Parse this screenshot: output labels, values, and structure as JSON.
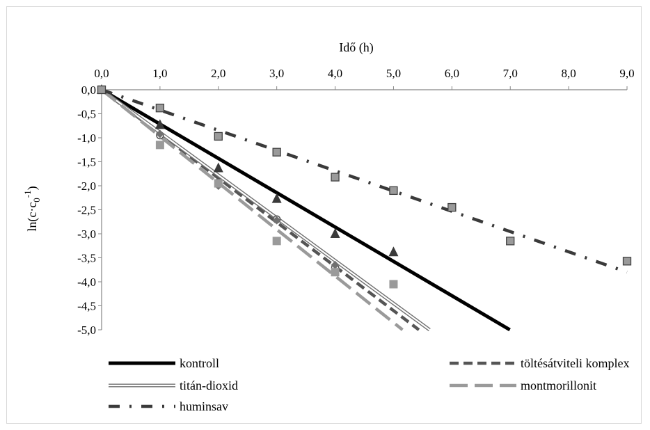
{
  "chart_data": {
    "type": "scatter",
    "title": "",
    "xlabel": "Idő (h)",
    "ylabel_main": "ln(c·c",
    "ylabel_sub": "0",
    "ylabel_sup": "-1",
    "ylabel_close": ")",
    "x_ticks": [
      "0,0",
      "1,0",
      "2,0",
      "3,0",
      "4,0",
      "5,0",
      "6,0",
      "7,0",
      "8,0",
      "9,0"
    ],
    "y_ticks": [
      "0,0",
      "-0,5",
      "-1,0",
      "-1,5",
      "-2,0",
      "-2,5",
      "-3,0",
      "-3,5",
      "-4,0",
      "-4,5",
      "-5,0"
    ],
    "xlim": [
      0,
      9
    ],
    "ylim": [
      -5,
      0
    ],
    "x_axis_position": "top",
    "legend_position": "bottom",
    "series": [
      {
        "name": "kontroll",
        "color": "#000000",
        "line_style": "solid",
        "marker": "triangle",
        "marker_color": "#3a3a3a",
        "points": [
          [
            0,
            0
          ],
          [
            1,
            -0.73
          ],
          [
            2,
            -1.63
          ],
          [
            3,
            -2.27
          ],
          [
            4,
            -3.0
          ],
          [
            5,
            -3.38
          ]
        ],
        "trend_slope": -0.715
      },
      {
        "name": "töltésátviteli komplex",
        "color": "#555555",
        "line_style": "dashed",
        "marker": "circle",
        "marker_color": "#555555",
        "points": [
          [
            0,
            0
          ],
          [
            1,
            -0.95
          ],
          [
            2,
            -1.93
          ],
          [
            3,
            -2.7
          ],
          [
            4,
            -3.7
          ]
        ],
        "trend_slope": -0.92
      },
      {
        "name": "titán-dioxid",
        "color": "#707070",
        "line_style": "double",
        "marker": "diamond",
        "marker_color": "#707070",
        "points": [
          [
            0,
            0
          ],
          [
            1,
            -0.92
          ],
          [
            2,
            -2.0
          ],
          [
            3,
            -2.72
          ],
          [
            4,
            -3.65
          ]
        ],
        "trend_slope": -0.89
      },
      {
        "name": "montmorillonit",
        "color": "#9a9a9a",
        "line_style": "long-dash",
        "marker": "square",
        "marker_color": "#9a9a9a",
        "points": [
          [
            0,
            0
          ],
          [
            1,
            -1.15
          ],
          [
            2,
            -1.95
          ],
          [
            3,
            -3.15
          ],
          [
            4,
            -3.8
          ],
          [
            5,
            -4.05
          ]
        ],
        "trend_slope": -0.97
      },
      {
        "name": "huminsav",
        "color": "#3a3a3a",
        "line_style": "dash-dot",
        "marker": "square-outlined",
        "marker_color": "#9a9a9a",
        "points": [
          [
            0,
            0
          ],
          [
            1,
            -0.38
          ],
          [
            2,
            -0.97
          ],
          [
            3,
            -1.3
          ],
          [
            4,
            -1.82
          ],
          [
            5,
            -2.1
          ],
          [
            6,
            -2.45
          ],
          [
            7,
            -3.15
          ],
          [
            9,
            -3.57
          ]
        ],
        "trend_slope": -0.422
      }
    ]
  }
}
